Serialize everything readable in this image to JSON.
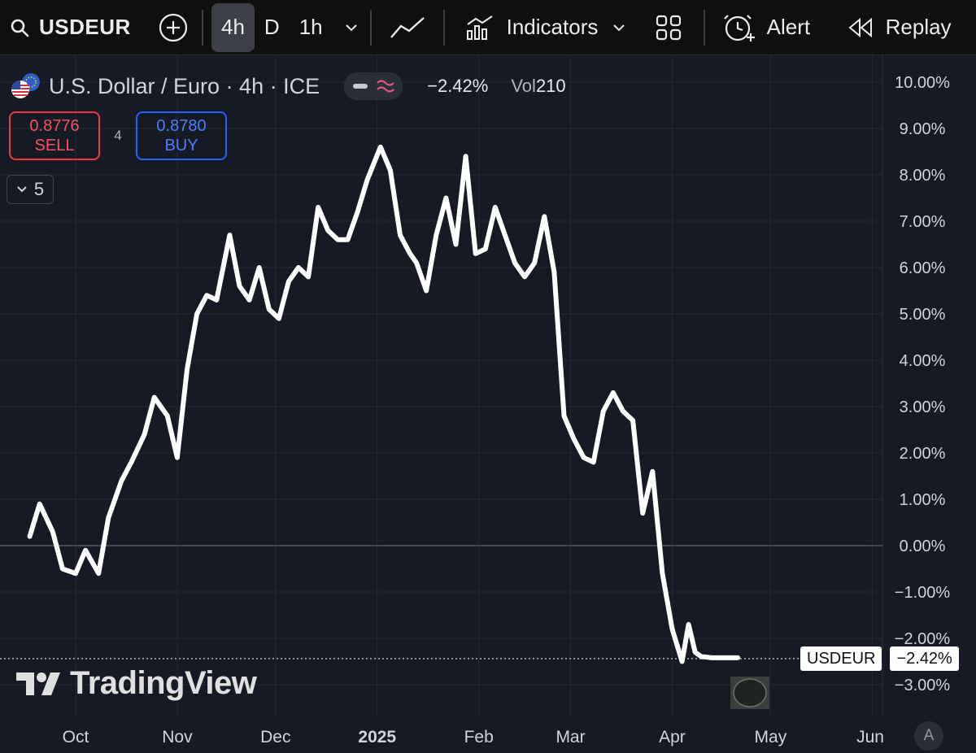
{
  "toolbar": {
    "symbol": "USDEUR",
    "intervals": [
      "4h",
      "D",
      "1h"
    ],
    "active_interval": "4h",
    "indicators_label": "Indicators",
    "alert_label": "Alert",
    "replay_label": "Replay"
  },
  "legend": {
    "title": "U.S. Dollar / Euro · 4h · ICE",
    "change": "−2.42%",
    "vol_label": "Vol",
    "vol_value": "210"
  },
  "trade": {
    "sell_price": "0.8776",
    "sell_label": "SELL",
    "spread": "4",
    "buy_price": "0.8780",
    "buy_label": "BUY"
  },
  "collapse_count": "5",
  "watermark": "TradingView",
  "price_tag": {
    "symbol": "USDEUR",
    "value": "−2.42%"
  },
  "auto_label": "A",
  "colors": {
    "background": "#161a25",
    "line": "#ffffff",
    "sell": "#f23645",
    "buy": "#2962ff"
  },
  "chart_data": {
    "type": "line",
    "title": "U.S. Dollar / Euro · 4h · ICE",
    "xlabel": "",
    "ylabel": "",
    "x_tick_labels": [
      "Oct",
      "Nov",
      "Dec",
      "2025",
      "Feb",
      "Mar",
      "Apr",
      "May",
      "Jun"
    ],
    "y_tick_labels": [
      "10.00%",
      "9.00%",
      "8.00%",
      "7.00%",
      "6.00%",
      "5.00%",
      "4.00%",
      "3.00%",
      "2.00%",
      "1.00%",
      "0.00%",
      "−1.00%",
      "−2.00%",
      "−3.00%"
    ],
    "ylim": [
      -3.6,
      10.4
    ],
    "x_unit": "date",
    "grid": true,
    "series": [
      {
        "x": [
          "2024-09-17",
          "2024-09-20",
          "2024-09-24",
          "2024-09-27",
          "2024-10-01",
          "2024-10-04",
          "2024-10-08",
          "2024-10-11",
          "2024-10-15",
          "2024-10-18",
          "2024-10-22",
          "2024-10-25",
          "2024-10-29",
          "2024-11-01",
          "2024-11-04",
          "2024-11-07",
          "2024-11-10",
          "2024-11-13",
          "2024-11-17",
          "2024-11-20",
          "2024-11-23",
          "2024-11-26",
          "2024-11-29",
          "2024-12-02",
          "2024-12-05",
          "2024-12-08",
          "2024-12-11",
          "2024-12-14",
          "2024-12-17",
          "2024-12-20",
          "2024-12-23",
          "2024-12-26",
          "2024-12-29",
          "2025-01-02",
          "2025-01-05",
          "2025-01-08",
          "2025-01-11",
          "2025-01-13",
          "2025-01-16",
          "2025-01-19",
          "2025-01-22",
          "2025-01-25",
          "2025-01-28",
          "2025-01-31",
          "2025-02-03",
          "2025-02-06",
          "2025-02-09",
          "2025-02-12",
          "2025-02-15",
          "2025-02-18",
          "2025-02-21",
          "2025-02-24",
          "2025-02-27",
          "2025-03-02",
          "2025-03-05",
          "2025-03-08",
          "2025-03-11",
          "2025-03-14",
          "2025-03-17",
          "2025-03-20",
          "2025-03-23",
          "2025-03-26",
          "2025-03-29",
          "2025-04-01",
          "2025-04-04",
          "2025-04-06",
          "2025-04-08",
          "2025-04-10",
          "2025-04-11",
          "2025-04-13",
          "2025-04-15",
          "2025-04-17",
          "2025-04-19",
          "2025-04-21"
        ],
        "values": [
          0.2,
          0.9,
          0.3,
          -0.5,
          -0.6,
          -0.1,
          -0.6,
          0.6,
          1.4,
          1.8,
          2.4,
          3.2,
          2.8,
          1.9,
          3.8,
          5.0,
          5.4,
          5.3,
          6.7,
          5.6,
          5.3,
          6.0,
          5.1,
          4.9,
          5.7,
          6.0,
          5.8,
          7.3,
          6.8,
          6.6,
          6.6,
          7.2,
          7.9,
          8.6,
          8.1,
          6.7,
          6.3,
          6.1,
          5.5,
          6.7,
          7.5,
          6.5,
          8.4,
          6.3,
          6.4,
          7.3,
          6.7,
          6.1,
          5.8,
          6.1,
          7.1,
          5.9,
          2.8,
          2.3,
          1.9,
          1.8,
          2.9,
          3.3,
          2.9,
          2.7,
          0.7,
          1.6,
          -0.6,
          -1.8,
          -2.5,
          -1.7,
          -2.3,
          -2.4,
          -2.4,
          -2.42,
          -2.42,
          -2.42,
          -2.42,
          -2.42
        ]
      }
    ],
    "last_value": "−2.42%"
  }
}
